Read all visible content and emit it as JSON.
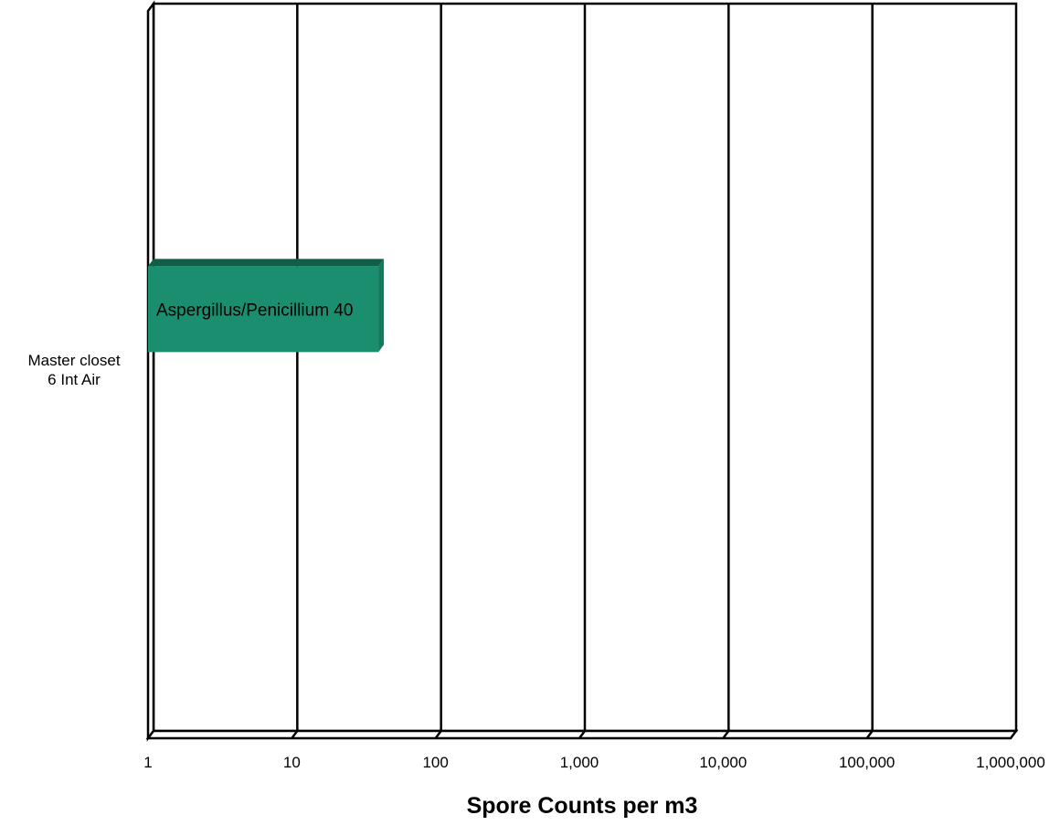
{
  "chart_data": {
    "type": "bar",
    "orientation": "horizontal",
    "x_scale": "log",
    "xlim": [
      1,
      1000000
    ],
    "x_ticks": [
      "1",
      "10",
      "100",
      "1,000",
      "10,000",
      "100,000",
      "1,000,000"
    ],
    "x_tick_values": [
      1,
      10,
      100,
      1000,
      10000,
      100000,
      1000000
    ],
    "xlabel": "Spore Counts per m3",
    "categories": [
      "Master closet\n6 Int Air"
    ],
    "series": [
      {
        "name": "Aspergillus/Penicillium",
        "values": [
          40
        ],
        "color": "#1a8e6e",
        "data_label": "Aspergillus/Penicillium 40"
      }
    ],
    "grid": true,
    "style": "3d"
  }
}
